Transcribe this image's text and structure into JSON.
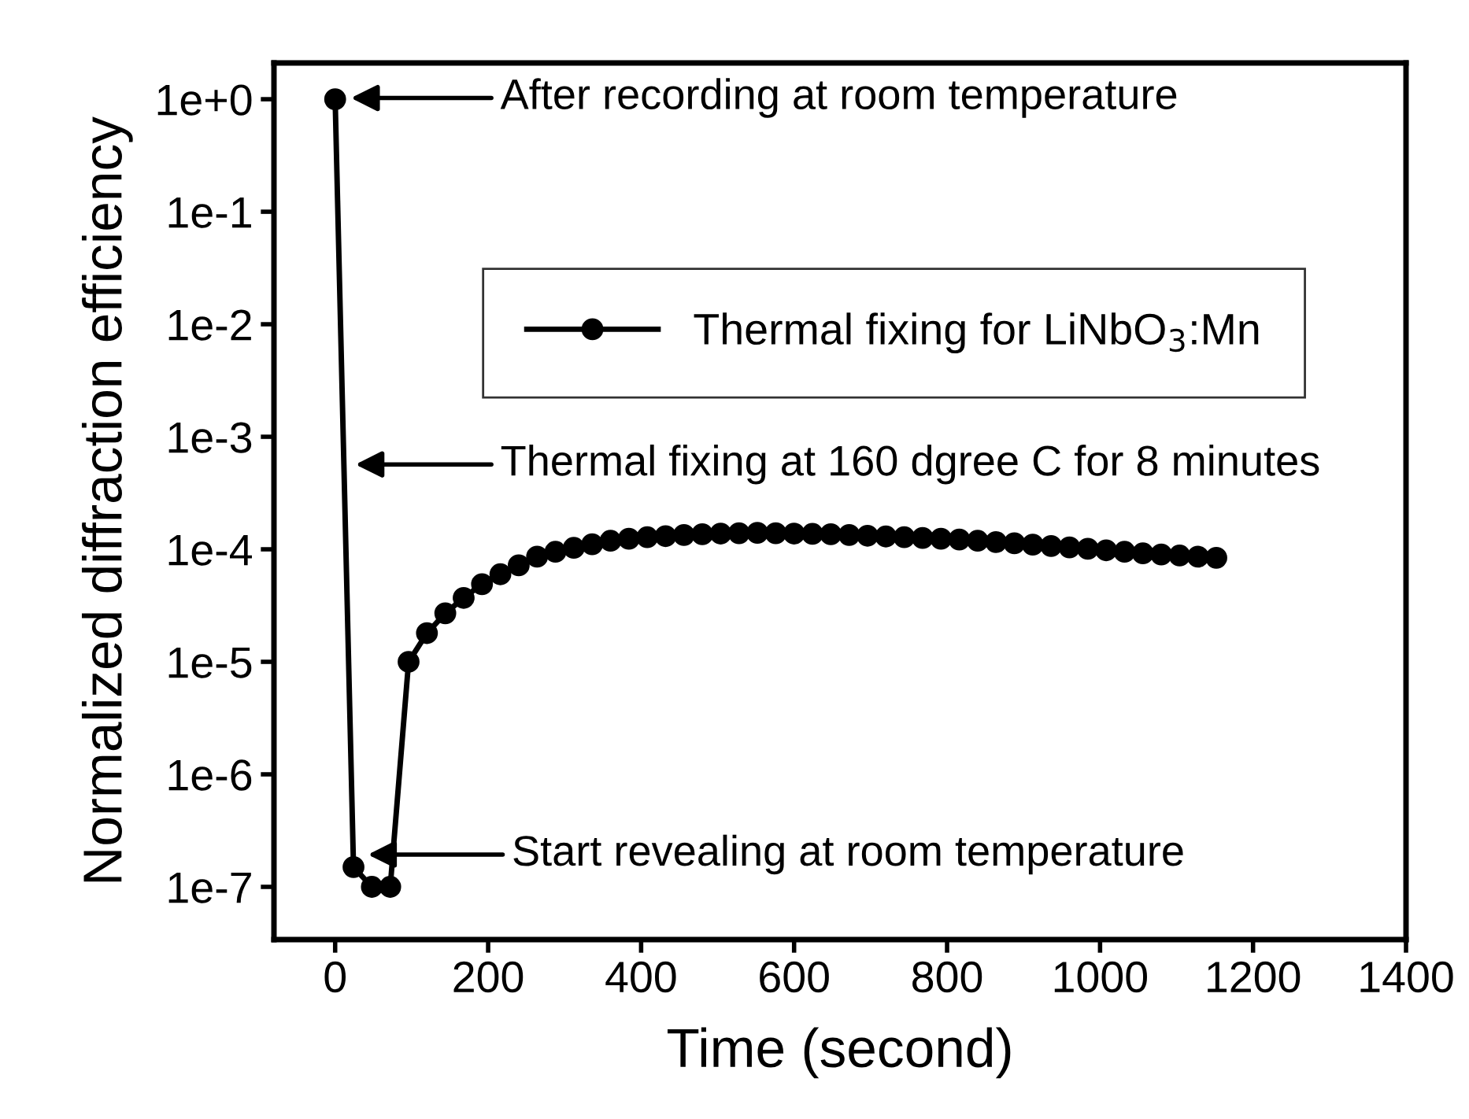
{
  "chart_data": {
    "type": "line",
    "xlabel": "Time (second)",
    "ylabel": "Normalized diffraction efficiency",
    "log": "y",
    "x": [
      0,
      24,
      48,
      72,
      96,
      120,
      144,
      168,
      192,
      216,
      240,
      264,
      288,
      312,
      336,
      360,
      384,
      408,
      432,
      456,
      480,
      504,
      528,
      552,
      576,
      600,
      624,
      648,
      672,
      696,
      720,
      744,
      768,
      792,
      816,
      840,
      864,
      888,
      912,
      936,
      960,
      984,
      1008,
      1032,
      1056,
      1080,
      1104,
      1128,
      1152
    ],
    "series": [
      {
        "name": "Thermal fixing for LiNbO$_{3}$:Mn",
        "color": "#000000",
        "values": [
          1,
          1.5e-07,
          1e-07,
          1e-07,
          1e-05,
          1.8e-05,
          2.7e-05,
          3.7e-05,
          4.9e-05,
          6e-05,
          7.2e-05,
          8.6e-05,
          9.5e-05,
          0.000103,
          0.000111,
          0.000119,
          0.000124,
          0.000128,
          0.000131,
          0.000134,
          0.000136,
          0.000138,
          0.000139,
          0.00014,
          0.000139,
          0.000138,
          0.000137,
          0.000136,
          0.000134,
          0.000132,
          0.00013,
          0.000128,
          0.000126,
          0.000124,
          0.000122,
          0.000119,
          0.000116,
          0.000113,
          0.00011,
          0.000107,
          0.000104,
          0.000101,
          9.8e-05,
          9.5e-05,
          9.2e-05,
          9e-05,
          8.8e-05,
          8.6e-05,
          8.4e-05
        ]
      }
    ],
    "xlim": [
      -80,
      1400
    ],
    "xticks": [
      0,
      200,
      400,
      600,
      800,
      1000,
      1200,
      1400
    ],
    "ylim": [
      3.4e-08,
      2.1
    ],
    "yticks": [
      {
        "value": 1,
        "label": "1e+0"
      },
      {
        "value": 0.1,
        "label": "1e-1"
      },
      {
        "value": 0.01,
        "label": "1e-2"
      },
      {
        "value": 0.001,
        "label": "1e-3"
      },
      {
        "value": 0.0001,
        "label": "1e-4"
      },
      {
        "value": 1e-05,
        "label": "1e-5"
      },
      {
        "value": 1e-06,
        "label": "1e-6"
      },
      {
        "value": 1e-07,
        "label": "1e-7"
      }
    ],
    "annotations": [
      "After recording at room temperature",
      "Thermal fixing at 160 dgree C for 8 minutes",
      "Start revealing at room temperature"
    ],
    "marker": "circle",
    "line_style": "solid",
    "grid": false,
    "legend": "top right"
  }
}
